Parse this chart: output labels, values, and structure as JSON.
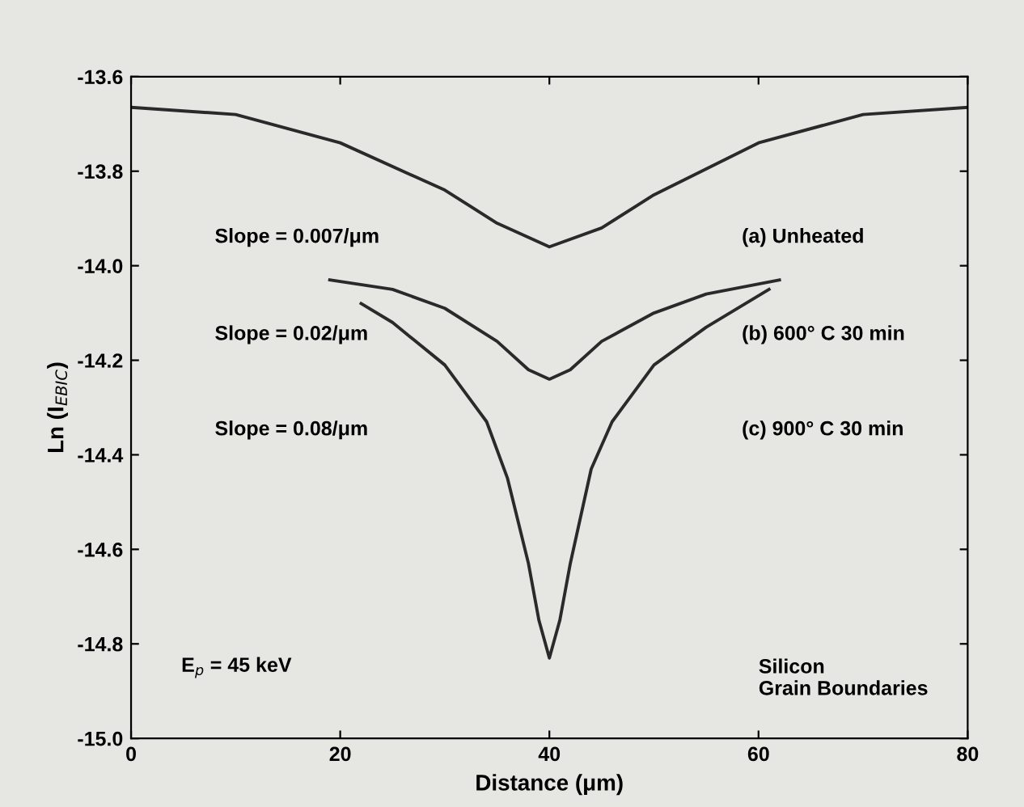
{
  "chart_data": {
    "type": "line",
    "xlabel": "Distance (μm)",
    "ylabel": "Ln (I$_{EBIC}$)",
    "xlim": [
      0,
      80
    ],
    "ylim": [
      -15.0,
      -13.6
    ],
    "xticks": [
      0,
      20,
      40,
      60,
      80
    ],
    "yticks": [
      {
        "value": -13.6,
        "label": "-13.6"
      },
      {
        "value": -13.8,
        "label": "-13.8"
      },
      {
        "value": -14.0,
        "label": "-14.0"
      },
      {
        "value": -14.2,
        "label": "-14.2"
      },
      {
        "value": -14.4,
        "label": "-14.4"
      },
      {
        "value": -14.6,
        "label": "-14.6"
      },
      {
        "value": -14.8,
        "label": "-14.8"
      },
      {
        "value": -15.0,
        "label": "-15.0"
      }
    ],
    "grid": false,
    "line_style": "solid",
    "marker": "none",
    "series": [
      {
        "color": "#2a2a2a",
        "x": [
          0,
          10,
          20,
          30,
          35,
          40,
          45,
          50,
          60,
          70,
          80
        ],
        "values": [
          -13.665,
          -13.68,
          -13.74,
          -13.84,
          -13.91,
          -13.96,
          -13.92,
          -13.85,
          -13.74,
          -13.68,
          -13.665
        ]
      },
      {
        "color": "#2a2a2a",
        "x": [
          19,
          25,
          30,
          35,
          38,
          40,
          42,
          45,
          50,
          55,
          62
        ],
        "values": [
          -14.03,
          -14.05,
          -14.09,
          -14.16,
          -14.22,
          -14.24,
          -14.22,
          -14.16,
          -14.1,
          -14.06,
          -14.03
        ]
      },
      {
        "color": "#2a2a2a",
        "x": [
          22,
          25,
          30,
          34,
          36,
          38,
          39,
          40,
          41,
          42,
          44,
          46,
          50,
          55,
          61
        ],
        "values": [
          -14.08,
          -14.12,
          -14.21,
          -14.33,
          -14.45,
          -14.63,
          -14.75,
          -14.83,
          -14.75,
          -14.63,
          -14.43,
          -14.33,
          -14.21,
          -14.13,
          -14.05
        ]
      }
    ],
    "annotations": [
      "Slope = 0.007/μm",
      "(a) Unheated",
      "Slope = 0.02/μm",
      "(b) 600° C 30 min",
      "Slope = 0.08/μm",
      "(c) 900° C 30 min",
      "E$_{p}$ = 45 keV",
      "Silicon\nGrain Boundaries"
    ]
  }
}
